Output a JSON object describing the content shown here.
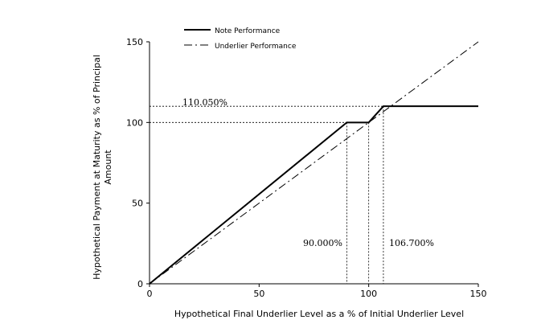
{
  "chart_data": {
    "type": "line",
    "xlabel": "Hypothetical Final Underlier Level as a % of Initial Underlier Level",
    "ylabel_lines": [
      "Hypothetical Payment at Maturity as % of Principal",
      "Amount"
    ],
    "xlim": [
      0,
      150
    ],
    "ylim": [
      0,
      150
    ],
    "x_ticks": [
      0,
      50,
      100,
      150
    ],
    "y_ticks": [
      0,
      50,
      100,
      150
    ],
    "grid": false,
    "legend_position": "top-left",
    "series": [
      {
        "name": "Note Performance",
        "style": "solid",
        "color": "#000000",
        "x": [
          0,
          90,
          100,
          106.7,
          150
        ],
        "y": [
          0,
          100,
          100,
          110.05,
          110.05
        ]
      },
      {
        "name": "Underlier Performance",
        "style": "dashdot",
        "color": "#000000",
        "x": [
          0,
          150
        ],
        "y": [
          0,
          150
        ]
      }
    ],
    "annotations": {
      "cap_label": "110.050%",
      "buffer_label": "90.000%",
      "upside_label": "106.700%"
    },
    "reference_lines": {
      "cap_y": 110.05,
      "par_y": 100,
      "buffer_x": 90,
      "initial_x": 100,
      "cap_x": 106.7
    }
  }
}
